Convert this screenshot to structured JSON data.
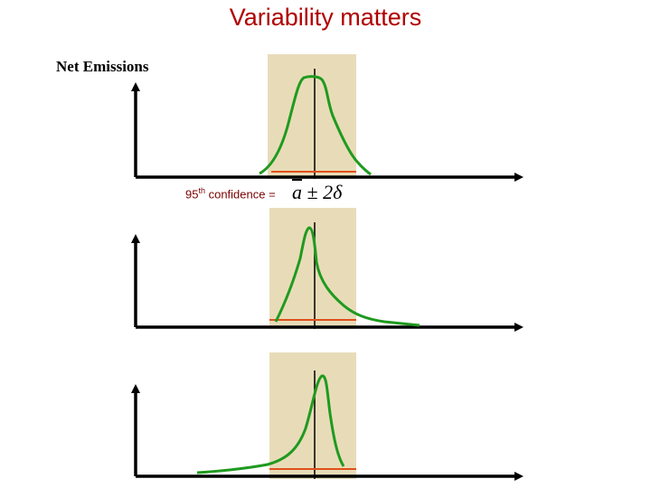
{
  "title": "Variability matters",
  "y_axis_label": "Net Emissions",
  "confidence": {
    "prefix": "95",
    "superscript": "th",
    "suffix": " confidence =",
    "formula_variable": "a",
    "formula_rest": " ± 2δ"
  },
  "colors": {
    "title": "#b00000",
    "band": "#e8dcb8",
    "curve": "#1f9a1f",
    "interval_line": "#e0501a",
    "axis": "#000000"
  },
  "panels": [
    {
      "name": "symmetric",
      "shape": "symmetric distribution"
    },
    {
      "name": "right-skewed",
      "shape": "long right tail"
    },
    {
      "name": "left-skewed",
      "shape": "long left tail"
    }
  ]
}
